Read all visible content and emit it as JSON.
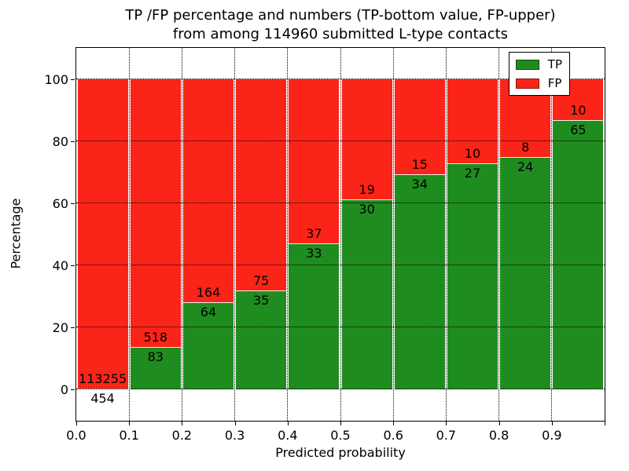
{
  "title": {
    "line1": "TP /FP percentage and numbers (TP-bottom value, FP-upper)",
    "line2": "from among 114960 submitted L-type contacts"
  },
  "axes": {
    "xlabel": "Predicted probability",
    "ylabel": "Percentage",
    "x_ticks": [
      "0.0",
      "0.1",
      "0.2",
      "0.3",
      "0.4",
      "0.5",
      "0.6",
      "0.7",
      "0.8",
      "0.9"
    ],
    "y_ticks": [
      "0",
      "20",
      "40",
      "60",
      "80",
      "100"
    ],
    "y_tick_values": [
      0,
      20,
      40,
      60,
      80,
      100
    ],
    "xlim": [
      0.0,
      1.0
    ],
    "ylim": [
      -10,
      110
    ],
    "grid": "dotted"
  },
  "legend": {
    "position": "upper-right",
    "items": [
      {
        "label": "TP",
        "color": "#1f8c1f"
      },
      {
        "label": "FP",
        "color": "#fb2418"
      }
    ]
  },
  "colors": {
    "tp_green": "#1f8c1f",
    "fp_red": "#fb2418",
    "grid": "#000000",
    "background": "#ffffff"
  },
  "chart_data": {
    "type": "bar",
    "subtype": "stacked-100-percent",
    "title": "TP /FP percentage and numbers (TP-bottom value, FP-upper) from among 114960 submitted L-type contacts",
    "xlabel": "Predicted probability",
    "ylabel": "Percentage",
    "bin_width": 0.1,
    "bin_starts": [
      0.0,
      0.1,
      0.2,
      0.3,
      0.4,
      0.5,
      0.6,
      0.7,
      0.8,
      0.9
    ],
    "categories": [
      "0.0-0.1",
      "0.1-0.2",
      "0.2-0.3",
      "0.3-0.4",
      "0.4-0.5",
      "0.5-0.6",
      "0.6-0.7",
      "0.7-0.8",
      "0.8-0.9",
      "0.9-1.0"
    ],
    "series": [
      {
        "name": "TP",
        "color": "#1f8c1f",
        "counts": [
          454,
          83,
          64,
          35,
          33,
          30,
          34,
          27,
          24,
          65
        ]
      },
      {
        "name": "FP",
        "color": "#fb2418",
        "counts": [
          113255,
          518,
          164,
          75,
          37,
          19,
          15,
          10,
          8,
          10
        ]
      }
    ],
    "tp_percent_approx": [
      0.4,
      13.8,
      28.1,
      31.8,
      47.1,
      61.2,
      69.4,
      73.0,
      75.0,
      86.7
    ],
    "total_contacts": 114960,
    "ylim": [
      -10,
      110
    ],
    "grid": "on",
    "legend_position": "upper-right"
  }
}
